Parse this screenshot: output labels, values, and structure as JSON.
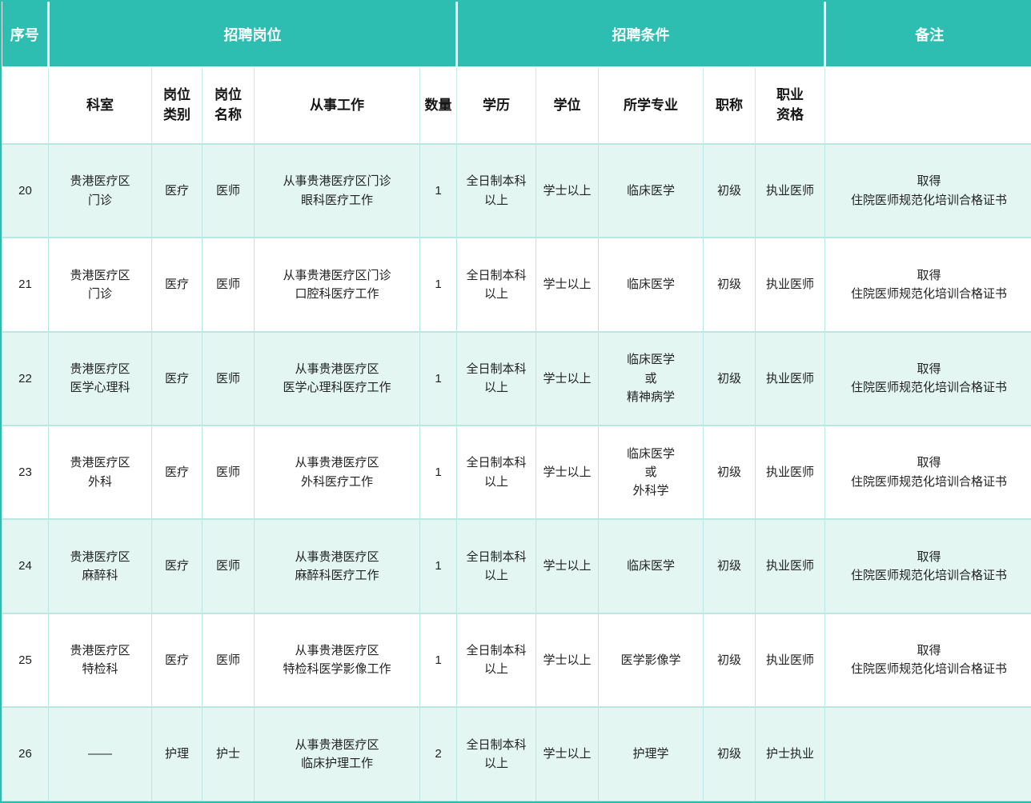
{
  "colors": {
    "header_teal": "#2ebeb1",
    "row_alt_bg": "#e3f6f2",
    "row_bg": "#ffffff",
    "grid_line": "#b9e7e1",
    "header_text": "#ffffff",
    "body_text": "#222222"
  },
  "table": {
    "header_groups": [
      {
        "label": "序号",
        "colspan": 1
      },
      {
        "label": "招聘岗位",
        "colspan": 5
      },
      {
        "label": "招聘条件",
        "colspan": 5
      },
      {
        "label": "备注",
        "colspan": 1
      }
    ],
    "columns": [
      "",
      "科室",
      "岗位\n类别",
      "岗位\n名称",
      "从事工作",
      "数量",
      "学历",
      "学位",
      "所学专业",
      "职称",
      "职业\n资格",
      ""
    ],
    "rows": [
      [
        "20",
        "贵港医疗区\n门诊",
        "医疗",
        "医师",
        "从事贵港医疗区门诊\n眼科医疗工作",
        "1",
        "全日制本科\n以上",
        "学士以上",
        "临床医学",
        "初级",
        "执业医师",
        "取得\n住院医师规范化培训合格证书"
      ],
      [
        "21",
        "贵港医疗区\n门诊",
        "医疗",
        "医师",
        "从事贵港医疗区门诊\n口腔科医疗工作",
        "1",
        "全日制本科\n以上",
        "学士以上",
        "临床医学",
        "初级",
        "执业医师",
        "取得\n住院医师规范化培训合格证书"
      ],
      [
        "22",
        "贵港医疗区\n医学心理科",
        "医疗",
        "医师",
        "从事贵港医疗区\n医学心理科医疗工作",
        "1",
        "全日制本科\n以上",
        "学士以上",
        "临床医学\n或\n精神病学",
        "初级",
        "执业医师",
        "取得\n住院医师规范化培训合格证书"
      ],
      [
        "23",
        "贵港医疗区\n外科",
        "医疗",
        "医师",
        "从事贵港医疗区\n外科医疗工作",
        "1",
        "全日制本科\n以上",
        "学士以上",
        "临床医学\n或\n外科学",
        "初级",
        "执业医师",
        "取得\n住院医师规范化培训合格证书"
      ],
      [
        "24",
        "贵港医疗区\n麻醉科",
        "医疗",
        "医师",
        "从事贵港医疗区\n麻醉科医疗工作",
        "1",
        "全日制本科\n以上",
        "学士以上",
        "临床医学",
        "初级",
        "执业医师",
        "取得\n住院医师规范化培训合格证书"
      ],
      [
        "25",
        "贵港医疗区\n特检科",
        "医疗",
        "医师",
        "从事贵港医疗区\n特检科医学影像工作",
        "1",
        "全日制本科\n以上",
        "学士以上",
        "医学影像学",
        "初级",
        "执业医师",
        "取得\n住院医师规范化培训合格证书"
      ],
      [
        "26",
        "——",
        "护理",
        "护士",
        "从事贵港医疗区\n临床护理工作",
        "2",
        "全日制本科\n以上",
        "学士以上",
        "护理学",
        "初级",
        "护士执业",
        ""
      ]
    ]
  }
}
